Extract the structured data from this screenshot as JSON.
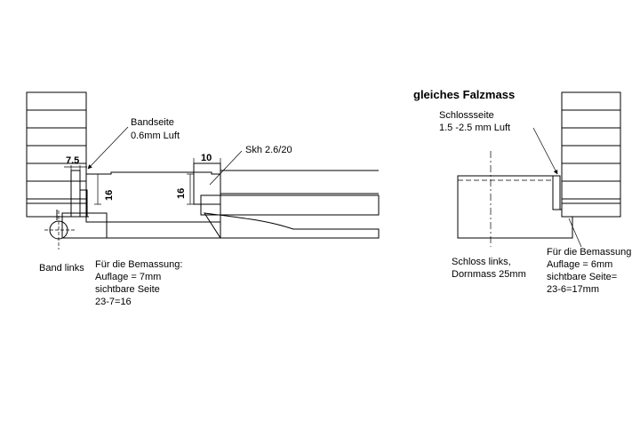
{
  "left_detail": {
    "dim_7_5": "7.5",
    "dim_16_left": "16",
    "dim_10": "10",
    "dim_16_mid": "16",
    "bandseite_line1": "Bandseite",
    "bandseite_line2": "0.6mm Luft",
    "skh": "Skh 2.6/20",
    "band_links": "Band links",
    "bemassung_line1": "Für die Bemassung:",
    "bemassung_line2": "Auflage = 7mm",
    "bemassung_line3": "sichtbare Seite",
    "bemassung_line4": "23-7=16"
  },
  "right_detail": {
    "heading": "gleiches Falzmass",
    "schlossseite_line1": "Schlossseite",
    "schlossseite_line2": "1.5 -2.5 mm Luft",
    "schloss_line1": "Schloss links,",
    "schloss_line2": "Dornmass 25mm",
    "bemassung_line1": "Für die Bemassung",
    "bemassung_line2": "Auflage = 6mm",
    "bemassung_line3": "sichtbare Seite=",
    "bemassung_line4": "23-6=17mm"
  }
}
